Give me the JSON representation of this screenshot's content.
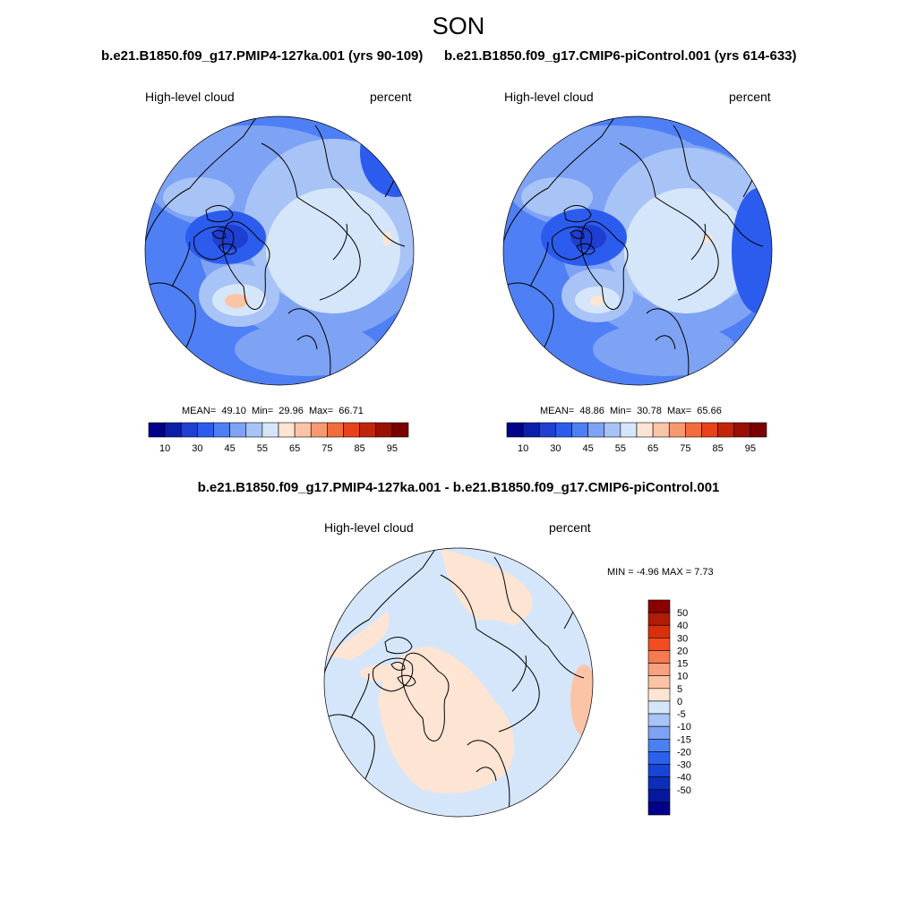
{
  "title": "SON",
  "colors": {
    "palette": [
      "#00008b",
      "#0a1fa8",
      "#1f3fd0",
      "#2c5cee",
      "#4f7ff4",
      "#7ea3f5",
      "#a8c3f6",
      "#d5e6fa",
      "#fde4d3",
      "#fbc4a6",
      "#f7996f",
      "#f26c3d",
      "#e8421a",
      "#c12408",
      "#9a1005",
      "#7a0000"
    ],
    "diff_palette": [
      "#00008b",
      "#06189e",
      "#0c2eb8",
      "#1746d6",
      "#2c62ea",
      "#4a80f0",
      "#7ea3f5",
      "#a8c3f6",
      "#d5e6fa",
      "#fde4d3",
      "#fbc4a6",
      "#f9a080",
      "#f77a50",
      "#f04e20",
      "#d9300c",
      "#b01c06",
      "#8b0000"
    ]
  },
  "panels": [
    {
      "id": "pmip4",
      "title": "b.e21.B1850.f09_g17.PMIP4-127ka.001 (yrs 90-109)",
      "variable": "High-level cloud",
      "units": "percent",
      "stats": {
        "mean_label": "MEAN=",
        "mean": "49.10",
        "min_label": "Min=",
        "min": "29.96",
        "max_label": "Max=",
        "max": "66.71"
      },
      "colorbar_ticks": [
        "10",
        "30",
        "45",
        "55",
        "65",
        "75",
        "85",
        "95"
      ]
    },
    {
      "id": "picontrol",
      "title": "b.e21.B1850.f09_g17.CMIP6-piControl.001 (yrs 614-633)",
      "variable": "High-level cloud",
      "units": "percent",
      "stats": {
        "mean_label": "MEAN=",
        "mean": "48.86",
        "min_label": "Min=",
        "min": "30.78",
        "max_label": "Max=",
        "max": "65.66"
      },
      "colorbar_ticks": [
        "10",
        "30",
        "45",
        "55",
        "65",
        "75",
        "85",
        "95"
      ]
    }
  ],
  "difference": {
    "title": "b.e21.B1850.f09_g17.PMIP4-127ka.001 - b.e21.B1850.f09_g17.CMIP6-piControl.001",
    "variable": "High-level cloud",
    "units": "percent",
    "stats_text": "MIN =  -4.96 MAX =   7.73",
    "colorbar_labels": [
      "50",
      "40",
      "30",
      "20",
      "15",
      "10",
      "5",
      "0",
      "-5",
      "-10",
      "-15",
      "-20",
      "-30",
      "-40",
      "-50"
    ]
  }
}
